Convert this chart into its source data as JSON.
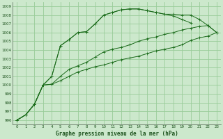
{
  "title": "Graphe pression niveau de la mer (hPa)",
  "xlim": [
    -0.5,
    23.5
  ],
  "ylim": [
    995.5,
    1009.5
  ],
  "yticks": [
    996,
    997,
    998,
    999,
    1000,
    1001,
    1002,
    1003,
    1004,
    1005,
    1006,
    1007,
    1008,
    1009
  ],
  "xticks": [
    0,
    1,
    2,
    3,
    4,
    5,
    6,
    7,
    8,
    9,
    10,
    11,
    12,
    13,
    14,
    15,
    16,
    17,
    18,
    19,
    20,
    21,
    22,
    23
  ],
  "background_color": "#cce8cc",
  "grid_color": "#99cc99",
  "line_color": "#1a6b1a",
  "series": [
    [
      996.0,
      996.6,
      997.8,
      1000.0,
      1001.0,
      1004.5,
      1005.2,
      1006.0,
      1006.1,
      1007.0,
      1008.0,
      1008.3,
      1008.6,
      1008.7,
      1008.7,
      1008.5,
      1008.3,
      1008.1,
      1007.9,
      1007.5,
      1007.1,
      null,
      null,
      null
    ],
    [
      996.0,
      996.6,
      997.8,
      1000.0,
      1001.0,
      1004.5,
      1005.2,
      1006.0,
      1006.1,
      1007.0,
      1008.0,
      1008.3,
      1008.6,
      1008.7,
      1008.7,
      1008.5,
      1008.3,
      1008.1,
      1008.1,
      1008.0,
      1008.0,
      1007.5,
      1006.8,
      1006.0
    ],
    [
      996.0,
      996.6,
      997.8,
      1000.0,
      1000.1,
      1001.0,
      1001.8,
      1002.2,
      1002.6,
      1003.2,
      1003.8,
      1004.1,
      1004.3,
      1004.6,
      1005.0,
      1005.3,
      1005.5,
      1005.8,
      1006.0,
      1006.3,
      1006.5,
      1006.7,
      1006.8,
      1006.0
    ],
    [
      996.0,
      996.6,
      997.8,
      1000.0,
      1000.1,
      1000.5,
      1001.0,
      1001.5,
      1001.8,
      1002.1,
      1002.3,
      1002.6,
      1002.9,
      1003.1,
      1003.3,
      1003.6,
      1003.9,
      1004.1,
      1004.3,
      1004.6,
      1005.1,
      1005.4,
      1005.6,
      1006.0
    ]
  ]
}
